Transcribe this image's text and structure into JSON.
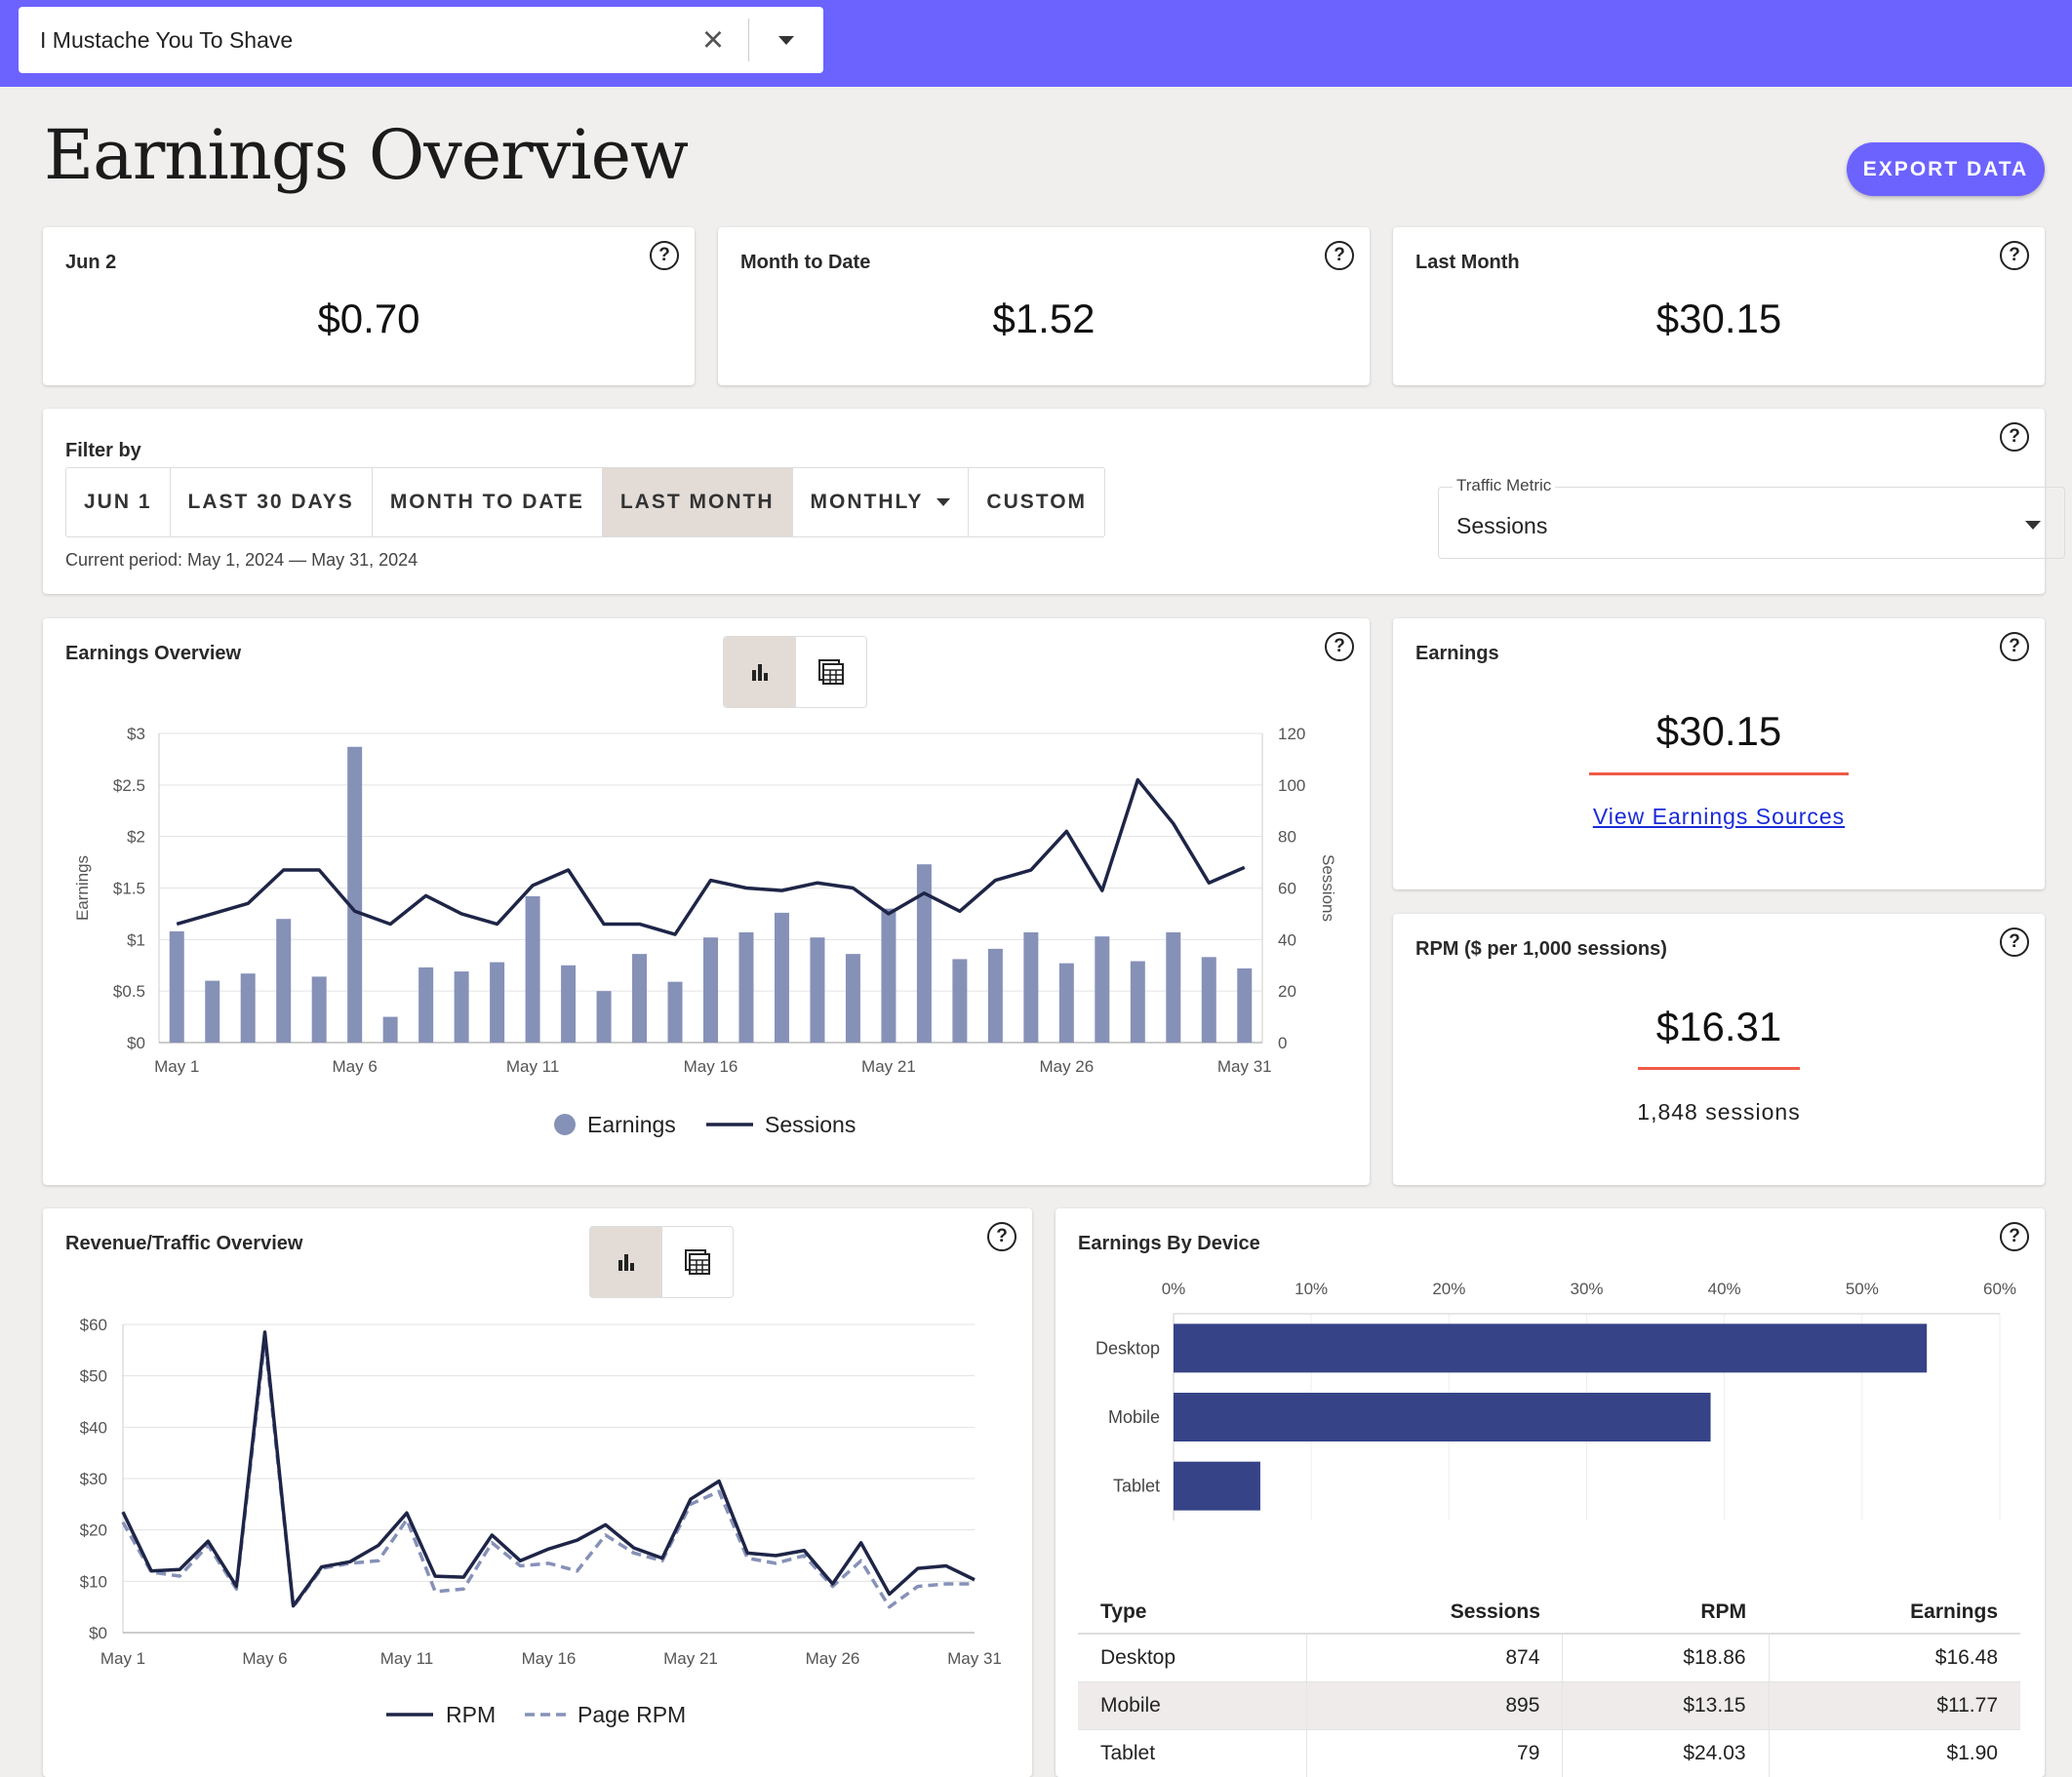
{
  "site_selector": {
    "value": "I Mustache You To Shave"
  },
  "page": {
    "title": "Earnings Overview",
    "export_label": "EXPORT DATA"
  },
  "stats": [
    {
      "label": "Jun 2",
      "value": "$0.70"
    },
    {
      "label": "Month to Date",
      "value": "$1.52"
    },
    {
      "label": "Last Month",
      "value": "$30.15"
    }
  ],
  "filter": {
    "label": "Filter by",
    "buttons": [
      "JUN 1",
      "LAST 30 DAYS",
      "MONTH TO DATE",
      "LAST MONTH",
      "MONTHLY",
      "CUSTOM"
    ],
    "active": "LAST MONTH",
    "period": "Current period: May 1, 2024 — May 31, 2024",
    "traffic_metric_label": "Traffic Metric",
    "traffic_metric_value": "Sessions"
  },
  "earnings_card": {
    "label": "Earnings",
    "value": "$30.15",
    "link": "View Earnings Sources"
  },
  "rpm_card": {
    "label": "RPM ($ per 1,000 sessions)",
    "value": "$16.31",
    "sessions": "1,848 sessions"
  },
  "colors": {
    "accent": "#6c63ff",
    "bar": "#8691b8",
    "line": "#1e2547",
    "device_bar": "#364387",
    "red_underline": "#f15a46"
  },
  "icons": [
    "close-icon",
    "chevron-down-icon",
    "help-icon",
    "bar-chart-icon",
    "table-icon"
  ],
  "chart_data": [
    {
      "type": "bar",
      "title": "Earnings Overview",
      "ylabel": "Earnings",
      "y2label": "Sessions",
      "ylim": [
        0,
        3
      ],
      "y2lim": [
        0,
        120
      ],
      "yticks": [
        "$0",
        "$0.5",
        "$1",
        "$1.5",
        "$2",
        "$2.5",
        "$3"
      ],
      "y2ticks": [
        "0",
        "20",
        "40",
        "60",
        "80",
        "100",
        "120"
      ],
      "xticks": [
        "May 1",
        "May 6",
        "May 11",
        "May 16",
        "May 21",
        "May 26",
        "May 31"
      ],
      "grid": true,
      "series": [
        {
          "name": "Earnings",
          "kind": "bar",
          "values": [
            1.08,
            0.6,
            0.67,
            1.2,
            0.64,
            2.87,
            0.25,
            0.73,
            0.69,
            0.78,
            1.42,
            0.75,
            0.5,
            0.86,
            0.59,
            1.02,
            1.07,
            1.26,
            1.02,
            0.86,
            1.3,
            1.73,
            0.81,
            0.91,
            1.07,
            0.77,
            1.03,
            0.79,
            1.07,
            0.83,
            0.72
          ]
        },
        {
          "name": "Sessions",
          "kind": "line",
          "axis": "right",
          "values": [
            46,
            50,
            54,
            67,
            67,
            51,
            46,
            57,
            50,
            46,
            61,
            67,
            46,
            46,
            42,
            63,
            60,
            59,
            62,
            60,
            50,
            58,
            51,
            63,
            67,
            82,
            59,
            102,
            85,
            62,
            68
          ]
        }
      ],
      "legend": "bottom"
    },
    {
      "type": "line",
      "title": "Revenue/Traffic Overview",
      "ylim": [
        0,
        60
      ],
      "yticks": [
        "$0",
        "$10",
        "$20",
        "$30",
        "$40",
        "$50",
        "$60"
      ],
      "xticks": [
        "May 1",
        "May 6",
        "May 11",
        "May 16",
        "May 21",
        "May 26",
        "May 31"
      ],
      "grid": true,
      "series": [
        {
          "name": "RPM",
          "values": [
            23.5,
            12.0,
            12.3,
            17.8,
            9.0,
            58.5,
            5.2,
            12.8,
            13.8,
            17.0,
            23.3,
            11.0,
            10.8,
            19.0,
            14.0,
            16.3,
            18.0,
            21.0,
            16.5,
            14.5,
            26.0,
            29.5,
            15.5,
            15.0,
            16.0,
            9.5,
            17.5,
            7.5,
            12.5,
            13.0,
            10.3
          ]
        },
        {
          "name": "Page RPM",
          "dashed": true,
          "values": [
            21.5,
            11.8,
            11.0,
            17.0,
            8.5,
            57.0,
            5.0,
            12.5,
            13.5,
            14.0,
            22.0,
            8.0,
            8.5,
            17.5,
            13.0,
            13.5,
            12.0,
            19.0,
            15.5,
            14.0,
            25.0,
            27.5,
            14.5,
            13.5,
            15.0,
            9.0,
            14.0,
            5.0,
            9.0,
            9.5,
            9.5
          ]
        }
      ],
      "legend": "bottom"
    },
    {
      "type": "bar",
      "orientation": "horizontal",
      "title": "Earnings By Device",
      "categories": [
        "Desktop",
        "Mobile",
        "Tablet"
      ],
      "values": [
        54.7,
        39.0,
        6.3
      ],
      "xlim": [
        0,
        60
      ],
      "xticks": [
        "0%",
        "10%",
        "20%",
        "30%",
        "40%",
        "50%",
        "60%"
      ]
    }
  ],
  "device_table": {
    "headers": [
      "Type",
      "Sessions",
      "RPM",
      "Earnings"
    ],
    "rows": [
      [
        "Desktop",
        "874",
        "$18.86",
        "$16.48"
      ],
      [
        "Mobile",
        "895",
        "$13.15",
        "$11.77"
      ],
      [
        "Tablet",
        "79",
        "$24.03",
        "$1.90"
      ]
    ]
  }
}
